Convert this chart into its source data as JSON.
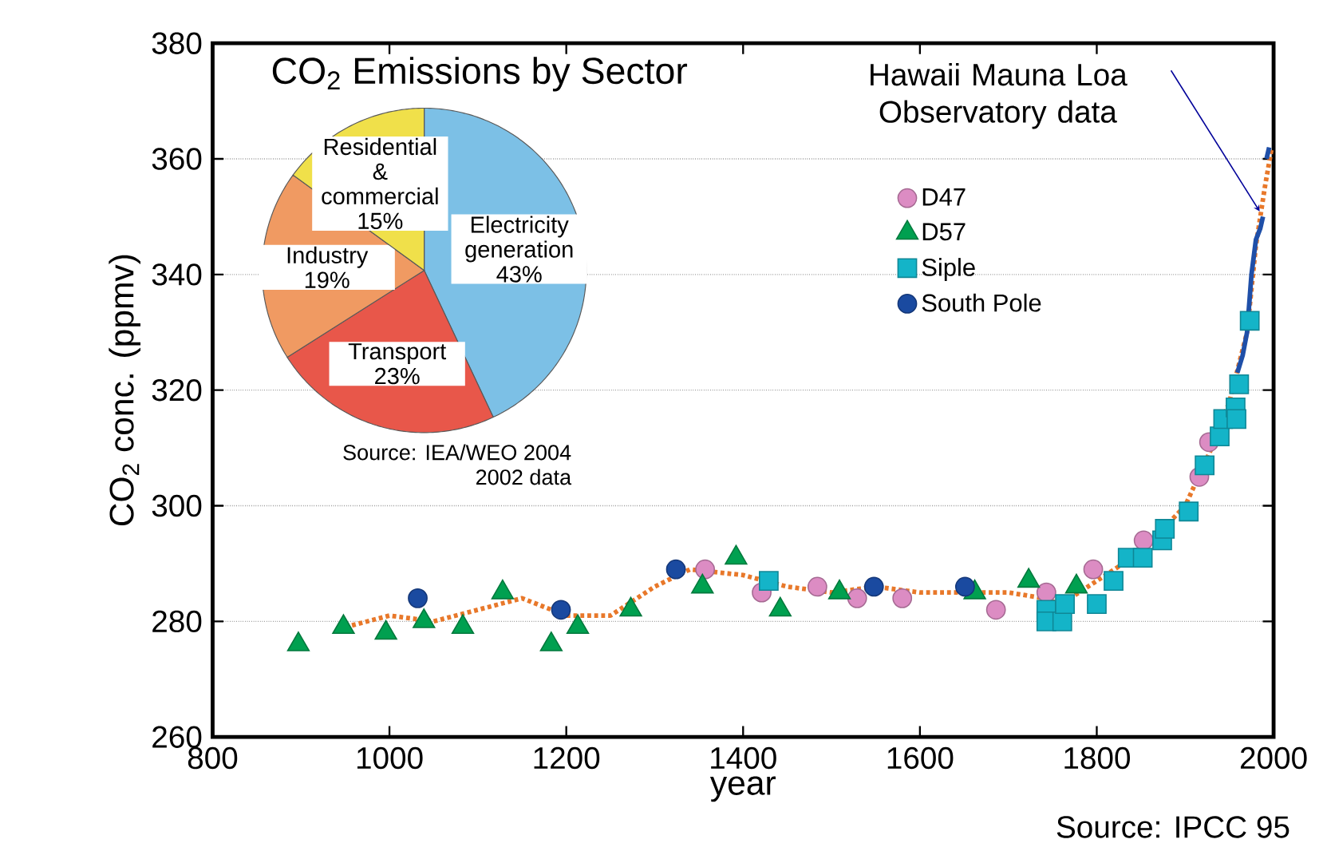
{
  "chart_data": [
    {
      "type": "scatter",
      "xlabel": "year",
      "ylabel": "CO$_{2}$ conc. (ppmv)",
      "xlim": [
        800,
        2000
      ],
      "ylim": [
        260,
        380
      ],
      "xticks": [
        800,
        1000,
        1200,
        1400,
        1600,
        1800,
        2000
      ],
      "yticks": [
        260,
        280,
        300,
        320,
        340,
        360,
        380
      ],
      "grid": "y",
      "legend": "top right",
      "annotations": [
        "Hawaii Mauna Loa Observatory data",
        "Source: IPCC 95"
      ],
      "series": [
        {
          "type": "line",
          "line_style": "dotted",
          "color": "#e8782a",
          "x": [
            950,
            1000,
            1050,
            1100,
            1150,
            1200,
            1250,
            1300,
            1340,
            1400,
            1450,
            1500,
            1550,
            1600,
            1650,
            1700,
            1740,
            1760,
            1800,
            1850,
            1900,
            1930,
            1950,
            1970,
            1980,
            1990,
            1998
          ],
          "values": [
            279,
            281,
            280,
            282,
            284,
            281,
            281,
            286,
            289,
            288,
            286,
            285,
            286,
            285,
            285,
            285,
            284,
            283,
            287,
            292,
            300,
            310,
            318,
            330,
            345,
            355,
            362
          ]
        },
        {
          "type": "line",
          "line_style": "solid",
          "color": "#1f4fa8",
          "x": [
            1959,
            1965,
            1970,
            1975,
            1980,
            1985,
            1988,
            1990,
            1992,
            1995
          ],
          "values": [
            323,
            326,
            330,
            340,
            346,
            348,
            350,
            null,
            360,
            362
          ]
        },
        {
          "name": "D47",
          "type": "scatter",
          "marker": "circle",
          "color": "#dc8cc3",
          "x": [
            1357,
            1421,
            1484,
            1529,
            1580,
            1686,
            1743,
            1796,
            1853,
            1916,
            1927
          ],
          "values": [
            289,
            285,
            286,
            284,
            284,
            282,
            285,
            289,
            294,
            305,
            311
          ]
        },
        {
          "name": "D57",
          "type": "scatter",
          "marker": "triangle",
          "color": "#00a050",
          "x": [
            897,
            948,
            996,
            1039,
            1083,
            1128,
            1183,
            1213,
            1273,
            1354,
            1392,
            1442,
            1509,
            1662,
            1723,
            1777
          ],
          "values": [
            276,
            279,
            278,
            280,
            279,
            285,
            276,
            279,
            282,
            286,
            291,
            282,
            285,
            285,
            287,
            286
          ]
        },
        {
          "name": "Siple",
          "type": "scatter",
          "marker": "square",
          "color": "#14b4c8",
          "x": [
            1429,
            1743,
            1743,
            1761,
            1764,
            1800,
            1819,
            1835,
            1852,
            1874,
            1877,
            1904,
            1922,
            1939,
            1943,
            1957,
            1958,
            1961,
            1973
          ],
          "values": [
            287,
            282,
            280,
            280,
            283,
            283,
            287,
            291,
            291,
            294,
            296,
            299,
            307,
            312,
            315,
            317,
            315,
            321,
            332
          ]
        },
        {
          "name": "South Pole",
          "type": "scatter",
          "marker": "circle",
          "color": "#1a4aa0",
          "x": [
            1032,
            1194,
            1324,
            1548,
            1651
          ],
          "values": [
            284,
            282,
            289,
            286,
            286
          ]
        }
      ]
    },
    {
      "type": "pie",
      "title": "CO$_{2}$ Emissions by Sector",
      "categories": [
        "Electricity generation",
        "Transport",
        "Industry",
        "Residential & commercial"
      ],
      "values": [
        43,
        23,
        19,
        15
      ],
      "value_labels": [
        "43%",
        "23%",
        "19%",
        "15%"
      ],
      "colors": [
        "#7cc0e6",
        "#e8574a",
        "#f09a62",
        "#f0e04a"
      ],
      "annotations": [
        "Source: IEA/WEO 2004",
        "2002 data"
      ]
    }
  ]
}
